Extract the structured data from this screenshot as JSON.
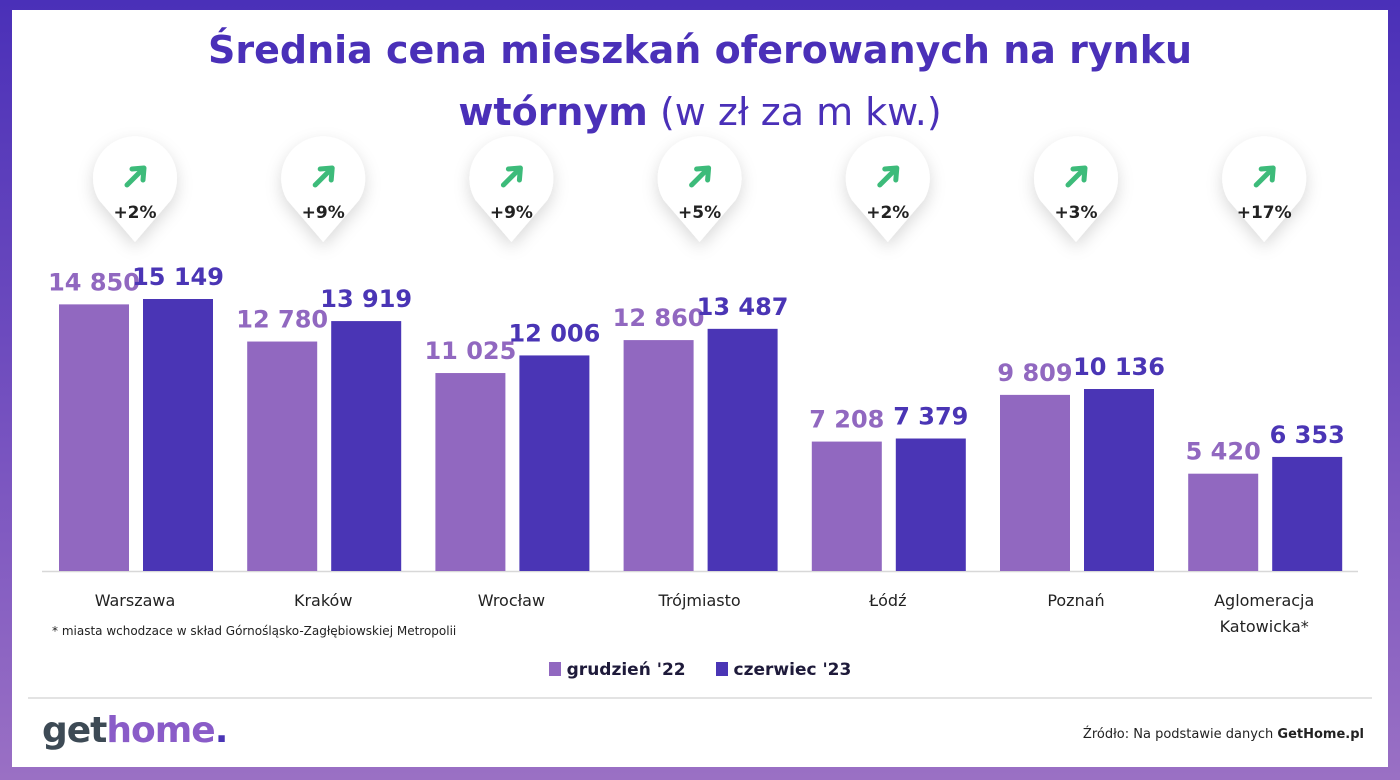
{
  "title_line1": "Średnia cena mieszkań oferowanych na rynku",
  "title_line2_bold": "wtórnym",
  "title_line2_unit": "(w zł za m kw.)",
  "colors": {
    "grudzien": "#9168c0",
    "czerwiec": "#4a35b5",
    "title": "#4a30b8",
    "arrow": "#3dbb7a"
  },
  "chart_data": {
    "type": "bar",
    "categories": [
      "Warszawa",
      "Kraków",
      "Wrocław",
      "Trójmiasto",
      "Łódź",
      "Poznań",
      "Aglomeracja Katowicka*"
    ],
    "series": [
      {
        "name": "grudzień '22",
        "values": [
          14850,
          12780,
          11025,
          12860,
          7208,
          9809,
          5420
        ],
        "labels": [
          "14 850",
          "12 780",
          "11 025",
          "12 860",
          "7 208",
          "9 809",
          "5 420"
        ]
      },
      {
        "name": "czerwiec '23",
        "values": [
          15149,
          13919,
          12006,
          13487,
          7379,
          10136,
          6353
        ],
        "labels": [
          "15 149",
          "13 919",
          "12 006",
          "13 487",
          "7 379",
          "10 136",
          "6 353"
        ]
      }
    ],
    "changes": [
      "+2%",
      "+9%",
      "+9%",
      "+5%",
      "+2%",
      "+3%",
      "+17%"
    ],
    "change_icon": "arrow-up-right-icon",
    "ylim": [
      0,
      15149
    ],
    "grid": false,
    "legend": "bottom"
  },
  "footnote": "* miasta wchodzace w skład Górnośląsko-Zagłębiowskiej Metropolii",
  "legend": {
    "item1": "grudzień '22",
    "item2": "czerwiec '23"
  },
  "logo": {
    "part1": "get",
    "part2": "home",
    "part3": "."
  },
  "source": {
    "prefix": "Źródło: Na podstawie danych ",
    "brand": "GetHome.pl"
  }
}
